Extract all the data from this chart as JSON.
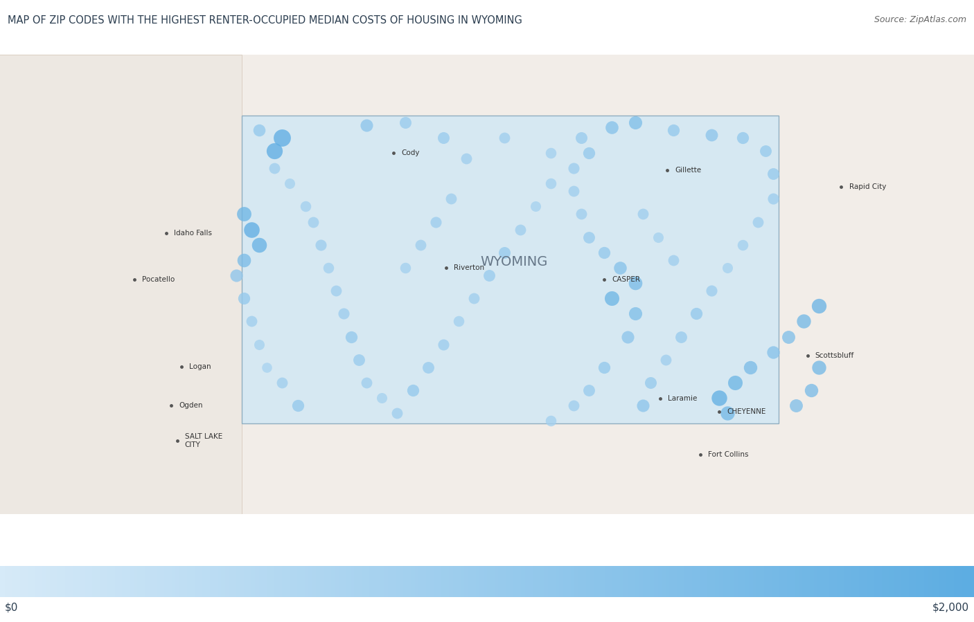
{
  "title": "MAP OF ZIP CODES WITH THE HIGHEST RENTER-OCCUPIED MEDIAN COSTS OF HOUSING IN WYOMING",
  "source": "Source: ZipAtlas.com",
  "colorbar_min": 0,
  "colorbar_max": 2000,
  "colorbar_label_left": "$0",
  "colorbar_label_right": "$2,000",
  "title_fontsize": 10.5,
  "source_fontsize": 9,
  "bg_color": "#ffffff",
  "map_bg_color": "#d6e8f2",
  "wyoming_bounds_lon": [
    -111.05,
    -104.05
  ],
  "wyoming_bounds_lat": [
    40.99,
    45.01
  ],
  "view_bounds_lon": [
    -114.2,
    -101.5
  ],
  "view_bounds_lat": [
    39.8,
    45.8
  ],
  "wyoming_label": "WYOMING",
  "wyoming_label_lon": -107.5,
  "wyoming_label_lat": 43.1,
  "city_labels": [
    {
      "name": "Cody",
      "lon": -109.07,
      "lat": 44.52
    },
    {
      "name": "Gillette",
      "lon": -105.5,
      "lat": 44.29
    },
    {
      "name": "Riverton",
      "lon": -108.38,
      "lat": 43.02
    },
    {
      "name": "CASPER",
      "lon": -106.32,
      "lat": 42.87
    },
    {
      "name": "Laramie",
      "lon": -105.59,
      "lat": 41.31
    },
    {
      "name": "CHEYENNE",
      "lon": -104.82,
      "lat": 41.14
    },
    {
      "name": "Rapid City",
      "lon": -103.23,
      "lat": 44.08
    },
    {
      "name": "Scottsbluff",
      "lon": -103.67,
      "lat": 41.87
    },
    {
      "name": "Fort Collins",
      "lon": -105.07,
      "lat": 40.58
    },
    {
      "name": "Idaho Falls",
      "lon": -112.03,
      "lat": 43.47
    },
    {
      "name": "Pocatello",
      "lon": -112.45,
      "lat": 42.87
    },
    {
      "name": "Logan",
      "lon": -111.83,
      "lat": 41.73
    },
    {
      "name": "Ogden",
      "lon": -111.97,
      "lat": 41.22
    },
    {
      "name": "SALT LAKE\nCITY",
      "lon": -111.89,
      "lat": 40.76
    }
  ],
  "dots": [
    {
      "lon": -110.52,
      "lat": 44.72,
      "value": 1950,
      "size": 320
    },
    {
      "lon": -110.62,
      "lat": 44.55,
      "value": 1950,
      "size": 280
    },
    {
      "lon": -110.82,
      "lat": 44.82,
      "value": 1100,
      "size": 160
    },
    {
      "lon": -109.42,
      "lat": 44.88,
      "value": 1200,
      "size": 170
    },
    {
      "lon": -108.92,
      "lat": 44.92,
      "value": 1000,
      "size": 150
    },
    {
      "lon": -108.42,
      "lat": 44.72,
      "value": 1000,
      "size": 150
    },
    {
      "lon": -108.12,
      "lat": 44.45,
      "value": 900,
      "size": 130
    },
    {
      "lon": -107.62,
      "lat": 44.72,
      "value": 900,
      "size": 130
    },
    {
      "lon": -107.02,
      "lat": 44.52,
      "value": 850,
      "size": 125
    },
    {
      "lon": -106.62,
      "lat": 44.72,
      "value": 1000,
      "size": 150
    },
    {
      "lon": -106.22,
      "lat": 44.85,
      "value": 1300,
      "size": 180
    },
    {
      "lon": -105.92,
      "lat": 44.92,
      "value": 1400,
      "size": 190
    },
    {
      "lon": -105.42,
      "lat": 44.82,
      "value": 1100,
      "size": 155
    },
    {
      "lon": -104.92,
      "lat": 44.75,
      "value": 1200,
      "size": 165
    },
    {
      "lon": -104.52,
      "lat": 44.72,
      "value": 1100,
      "size": 155
    },
    {
      "lon": -104.22,
      "lat": 44.55,
      "value": 1050,
      "size": 148
    },
    {
      "lon": -104.12,
      "lat": 44.25,
      "value": 1050,
      "size": 148
    },
    {
      "lon": -104.12,
      "lat": 43.92,
      "value": 950,
      "size": 135
    },
    {
      "lon": -104.32,
      "lat": 43.62,
      "value": 900,
      "size": 130
    },
    {
      "lon": -104.52,
      "lat": 43.32,
      "value": 850,
      "size": 125
    },
    {
      "lon": -104.72,
      "lat": 43.02,
      "value": 800,
      "size": 118
    },
    {
      "lon": -104.92,
      "lat": 42.72,
      "value": 950,
      "size": 135
    },
    {
      "lon": -105.12,
      "lat": 42.42,
      "value": 1100,
      "size": 155
    },
    {
      "lon": -105.32,
      "lat": 42.12,
      "value": 1000,
      "size": 148
    },
    {
      "lon": -105.52,
      "lat": 41.82,
      "value": 900,
      "size": 130
    },
    {
      "lon": -105.72,
      "lat": 41.52,
      "value": 1050,
      "size": 150
    },
    {
      "lon": -105.82,
      "lat": 41.22,
      "value": 1200,
      "size": 170
    },
    {
      "lon": -104.72,
      "lat": 41.12,
      "value": 1600,
      "size": 215
    },
    {
      "lon": -104.82,
      "lat": 41.32,
      "value": 1900,
      "size": 260
    },
    {
      "lon": -104.62,
      "lat": 41.52,
      "value": 1700,
      "size": 230
    },
    {
      "lon": -104.42,
      "lat": 41.72,
      "value": 1500,
      "size": 195
    },
    {
      "lon": -104.12,
      "lat": 41.92,
      "value": 1300,
      "size": 175
    },
    {
      "lon": -103.92,
      "lat": 42.12,
      "value": 1400,
      "size": 185
    },
    {
      "lon": -103.72,
      "lat": 42.32,
      "value": 1600,
      "size": 215
    },
    {
      "lon": -103.52,
      "lat": 42.52,
      "value": 1750,
      "size": 235
    },
    {
      "lon": -103.52,
      "lat": 41.72,
      "value": 1600,
      "size": 215
    },
    {
      "lon": -103.62,
      "lat": 41.42,
      "value": 1500,
      "size": 195
    },
    {
      "lon": -103.82,
      "lat": 41.22,
      "value": 1400,
      "size": 185
    },
    {
      "lon": -105.92,
      "lat": 42.82,
      "value": 1500,
      "size": 200
    },
    {
      "lon": -106.12,
      "lat": 43.02,
      "value": 1300,
      "size": 178
    },
    {
      "lon": -106.32,
      "lat": 43.22,
      "value": 1100,
      "size": 155
    },
    {
      "lon": -106.52,
      "lat": 43.42,
      "value": 1000,
      "size": 148
    },
    {
      "lon": -106.62,
      "lat": 43.72,
      "value": 900,
      "size": 130
    },
    {
      "lon": -106.72,
      "lat": 44.02,
      "value": 900,
      "size": 130
    },
    {
      "lon": -106.72,
      "lat": 44.32,
      "value": 950,
      "size": 135
    },
    {
      "lon": -106.52,
      "lat": 44.52,
      "value": 1100,
      "size": 155
    },
    {
      "lon": -107.02,
      "lat": 44.12,
      "value": 850,
      "size": 125
    },
    {
      "lon": -107.22,
      "lat": 43.82,
      "value": 800,
      "size": 118
    },
    {
      "lon": -107.42,
      "lat": 43.52,
      "value": 900,
      "size": 130
    },
    {
      "lon": -107.62,
      "lat": 43.22,
      "value": 1050,
      "size": 150
    },
    {
      "lon": -107.82,
      "lat": 42.92,
      "value": 1000,
      "size": 148
    },
    {
      "lon": -108.02,
      "lat": 42.62,
      "value": 900,
      "size": 130
    },
    {
      "lon": -108.22,
      "lat": 42.32,
      "value": 850,
      "size": 125
    },
    {
      "lon": -108.42,
      "lat": 42.02,
      "value": 950,
      "size": 135
    },
    {
      "lon": -108.62,
      "lat": 41.72,
      "value": 1000,
      "size": 148
    },
    {
      "lon": -108.82,
      "lat": 41.42,
      "value": 1100,
      "size": 155
    },
    {
      "lon": -109.02,
      "lat": 41.12,
      "value": 900,
      "size": 130
    },
    {
      "lon": -109.22,
      "lat": 41.32,
      "value": 800,
      "size": 118
    },
    {
      "lon": -109.42,
      "lat": 41.52,
      "value": 900,
      "size": 130
    },
    {
      "lon": -109.52,
      "lat": 41.82,
      "value": 1000,
      "size": 148
    },
    {
      "lon": -109.62,
      "lat": 42.12,
      "value": 1100,
      "size": 155
    },
    {
      "lon": -109.72,
      "lat": 42.42,
      "value": 950,
      "size": 135
    },
    {
      "lon": -109.82,
      "lat": 42.72,
      "value": 900,
      "size": 130
    },
    {
      "lon": -109.92,
      "lat": 43.02,
      "value": 850,
      "size": 125
    },
    {
      "lon": -110.02,
      "lat": 43.32,
      "value": 950,
      "size": 135
    },
    {
      "lon": -110.12,
      "lat": 43.62,
      "value": 900,
      "size": 130
    },
    {
      "lon": -110.22,
      "lat": 43.82,
      "value": 850,
      "size": 125
    },
    {
      "lon": -110.42,
      "lat": 44.12,
      "value": 800,
      "size": 118
    },
    {
      "lon": -110.62,
      "lat": 44.32,
      "value": 900,
      "size": 130
    },
    {
      "lon": -111.02,
      "lat": 43.12,
      "value": 1500,
      "size": 200
    },
    {
      "lon": -110.82,
      "lat": 43.32,
      "value": 1800,
      "size": 240
    },
    {
      "lon": -110.92,
      "lat": 43.52,
      "value": 1950,
      "size": 265
    },
    {
      "lon": -111.02,
      "lat": 43.72,
      "value": 1700,
      "size": 225
    },
    {
      "lon": -111.12,
      "lat": 42.92,
      "value": 1200,
      "size": 170
    },
    {
      "lon": -111.02,
      "lat": 42.62,
      "value": 1100,
      "size": 155
    },
    {
      "lon": -110.92,
      "lat": 42.32,
      "value": 900,
      "size": 130
    },
    {
      "lon": -110.82,
      "lat": 42.02,
      "value": 800,
      "size": 118
    },
    {
      "lon": -110.72,
      "lat": 41.72,
      "value": 750,
      "size": 110
    },
    {
      "lon": -110.52,
      "lat": 41.52,
      "value": 900,
      "size": 130
    },
    {
      "lon": -110.32,
      "lat": 41.22,
      "value": 1100,
      "size": 155
    },
    {
      "lon": -106.22,
      "lat": 42.62,
      "value": 1700,
      "size": 230
    },
    {
      "lon": -105.92,
      "lat": 42.42,
      "value": 1400,
      "size": 190
    },
    {
      "lon": -106.02,
      "lat": 42.12,
      "value": 1200,
      "size": 170
    },
    {
      "lon": -106.32,
      "lat": 41.72,
      "value": 1100,
      "size": 155
    },
    {
      "lon": -106.52,
      "lat": 41.42,
      "value": 1000,
      "size": 148
    },
    {
      "lon": -106.72,
      "lat": 41.22,
      "value": 900,
      "size": 130
    },
    {
      "lon": -107.02,
      "lat": 41.02,
      "value": 850,
      "size": 125
    },
    {
      "lon": -105.42,
      "lat": 43.12,
      "value": 900,
      "size": 130
    },
    {
      "lon": -105.62,
      "lat": 43.42,
      "value": 800,
      "size": 118
    },
    {
      "lon": -105.82,
      "lat": 43.72,
      "value": 900,
      "size": 130
    },
    {
      "lon": -108.32,
      "lat": 43.92,
      "value": 900,
      "size": 130
    },
    {
      "lon": -108.52,
      "lat": 43.62,
      "value": 950,
      "size": 135
    },
    {
      "lon": -108.72,
      "lat": 43.32,
      "value": 900,
      "size": 130
    },
    {
      "lon": -108.92,
      "lat": 43.02,
      "value": 850,
      "size": 125
    }
  ],
  "colormap_colors": [
    "#d6eaf8",
    "#5dade2"
  ],
  "dot_alpha": 0.78,
  "font_color": "#2c3e50",
  "city_font_size": 7.5,
  "wyoming_font_size": 14
}
